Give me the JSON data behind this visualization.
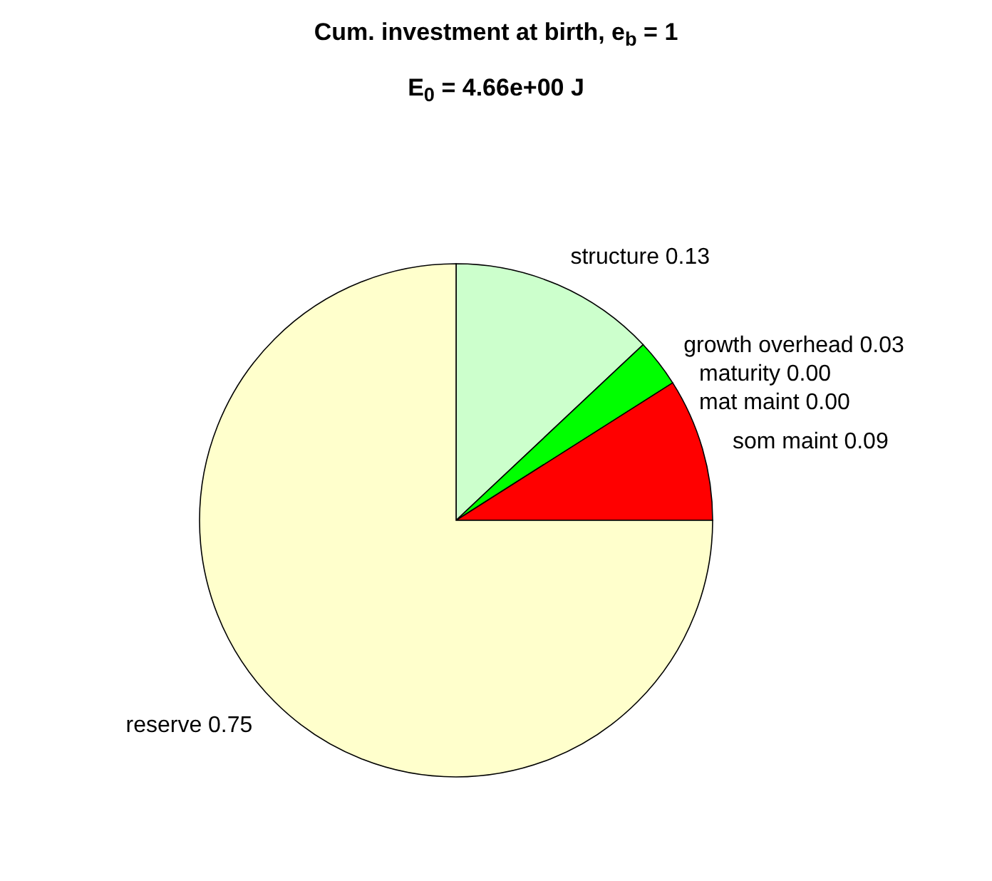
{
  "chart_data": {
    "type": "pie",
    "title": "Cum. investment at birth, e$_{b}$ = 1",
    "subtitle": "E$_{0}$ = 4.66e+00 J",
    "categories": [
      "structure",
      "growth overhead",
      "maturity",
      "mat maint",
      "som maint",
      "reserve"
    ],
    "values": [
      0.13,
      0.03,
      0,
      0,
      0.09,
      0.75
    ],
    "value_labels": [
      "0.13",
      "0.03",
      "0.00",
      "0.00",
      "0.09",
      "0.75"
    ],
    "colors": [
      "#ccffcc",
      "#00ff00",
      null,
      null,
      "#ff0000",
      "#ffffcc"
    ]
  }
}
